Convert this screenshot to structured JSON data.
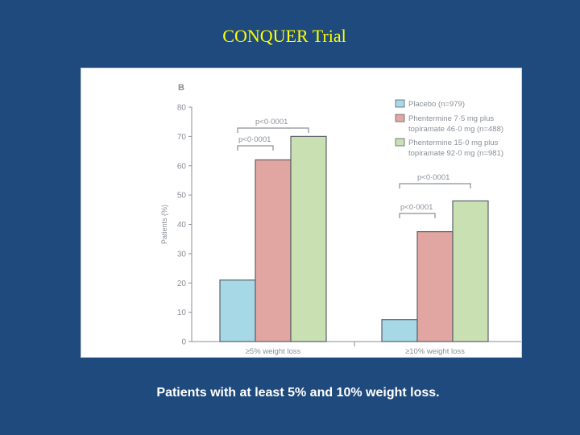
{
  "slide": {
    "title": "CONQUER  Trial",
    "caption": "Patients with at least 5% and  10% weight loss."
  },
  "colors": {
    "background": "#1f4a7d",
    "title": "#ffff00",
    "placebo": "#a7d8e6",
    "phen_low": "#e2a6a2",
    "phen_high": "#c9e1b2"
  },
  "chart_data": {
    "type": "bar",
    "panel_label": "B",
    "ylabel": "Patients (%)",
    "ylim": [
      0,
      80
    ],
    "yticks": [
      0,
      10,
      20,
      30,
      40,
      50,
      60,
      70,
      80
    ],
    "categories": [
      "≥5% weight loss",
      "≥10% weight loss"
    ],
    "series": [
      {
        "name": "Placebo (n=979)",
        "values": [
          21,
          7.5
        ]
      },
      {
        "name": "Phentermine 7·5 mg plus topiramate 46·0 mg (n=488)",
        "values": [
          62,
          37.5
        ]
      },
      {
        "name": "Phentermine 15·0 mg plus topiramate 92·0 mg (n=981)",
        "values": [
          70,
          48
        ]
      }
    ],
    "legend": [
      {
        "lines": [
          "Placebo (n=979)"
        ]
      },
      {
        "lines": [
          "Phentermine 7·5 mg plus",
          "topiramate 46·0 mg (n=488)"
        ]
      },
      {
        "lines": [
          "Phentermine 15·0 mg plus",
          "topiramate 92·0 mg (n=981)"
        ]
      }
    ],
    "legend_position": "top-right",
    "annotations": [
      {
        "text": "p<0·0001",
        "category": 0,
        "from_series": 0,
        "to_series": 2
      },
      {
        "text": "p<0·0001",
        "category": 0,
        "from_series": 0,
        "to_series": 1
      },
      {
        "text": "p<0·0001",
        "category": 1,
        "from_series": 0,
        "to_series": 2
      },
      {
        "text": "p<0·0001",
        "category": 1,
        "from_series": 0,
        "to_series": 1
      }
    ]
  }
}
